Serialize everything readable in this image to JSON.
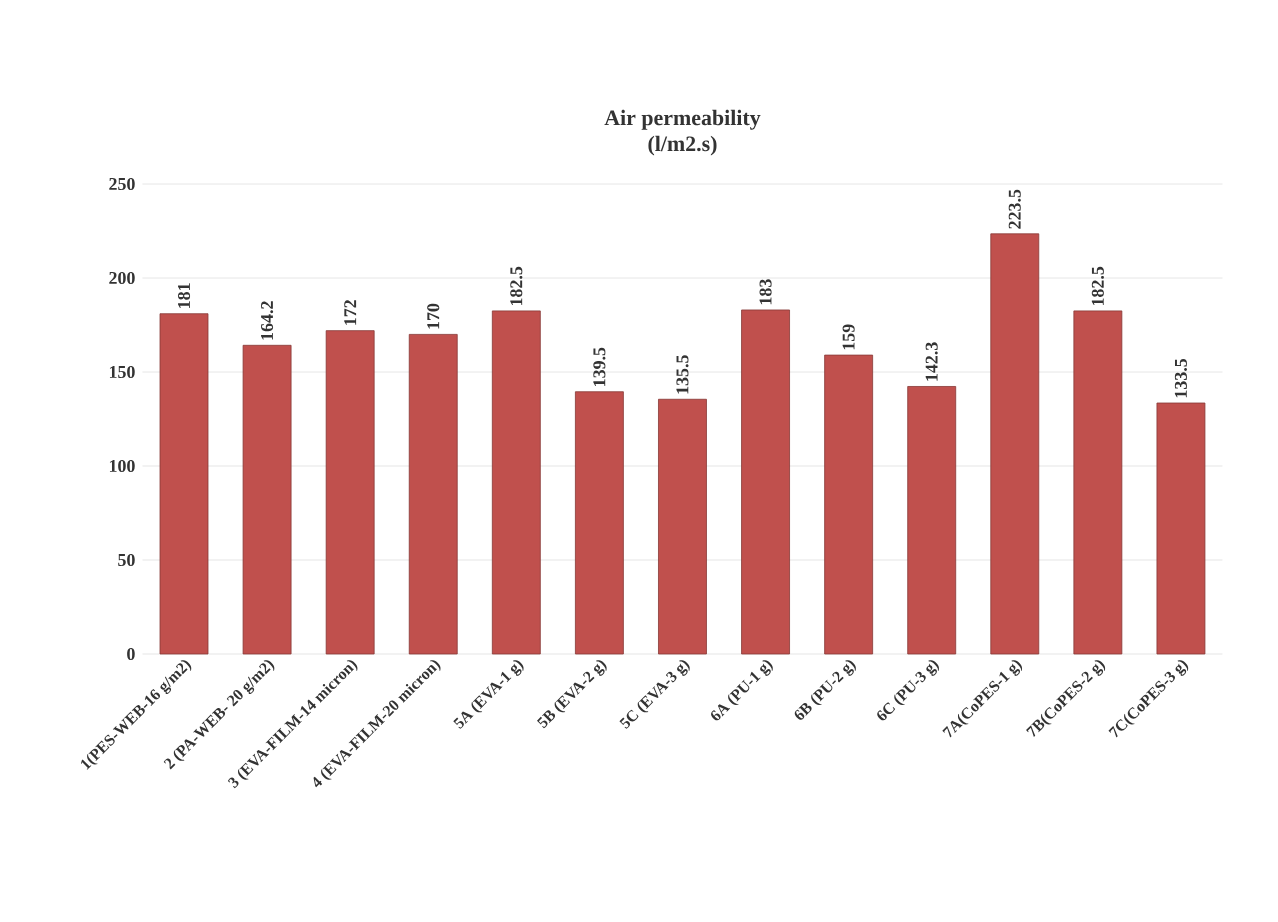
{
  "chart_data": {
    "type": "bar",
    "title": "Air permeability",
    "subtitle": "(l/m2.s)",
    "categories": [
      "1(PES-WEB-16 g/m2)",
      "2 (PA-WEB- 20 g/m2)",
      "3 (EVA-FILM-14 micron)",
      "4 (EVA-FILM-20 micron)",
      "5A (EVA-1 g)",
      "5B (EVA-2 g)",
      "5C (EVA-3 g)",
      "6A (PU-1 g)",
      "6B (PU-2 g)",
      "6C (PU-3 g)",
      "7A(CoPES-1 g)",
      "7B(CoPES-2 g)",
      "7C(CoPES-3 g)"
    ],
    "values": [
      181,
      164.2,
      172,
      170,
      182.5,
      139.5,
      135.5,
      183,
      159,
      142.3,
      223.5,
      182.5,
      133.5
    ],
    "color": "#c0504d",
    "ylim": [
      0,
      250
    ],
    "yticks": [
      0,
      50,
      100,
      150,
      200,
      250
    ],
    "grid": "y",
    "data_labels": true
  }
}
